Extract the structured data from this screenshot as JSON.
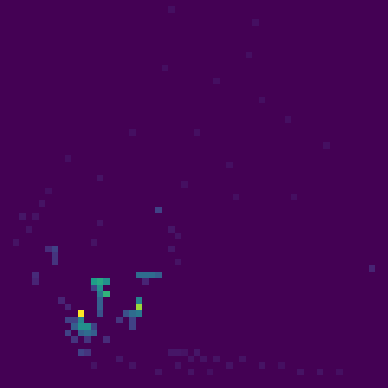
{
  "chart_data": {
    "type": "heatmap",
    "xlim": [
      0,
      60
    ],
    "ylim": [
      0,
      60
    ],
    "tick_labels": false,
    "grid": false,
    "color_range": [
      0,
      1
    ],
    "cells": [
      [
        12,
        48,
        1.0
      ],
      [
        21,
        47,
        0.85
      ],
      [
        21,
        46,
        0.45
      ],
      [
        21,
        48,
        0.4
      ],
      [
        20,
        48,
        0.35
      ],
      [
        19,
        48,
        0.25
      ],
      [
        20,
        50,
        0.2
      ],
      [
        18,
        49,
        0.15
      ],
      [
        20,
        49,
        0.2
      ],
      [
        14,
        43,
        0.55
      ],
      [
        15,
        43,
        0.6
      ],
      [
        16,
        43,
        0.5
      ],
      [
        15,
        44,
        0.5
      ],
      [
        16,
        45,
        0.65
      ],
      [
        15,
        45,
        0.4
      ],
      [
        15,
        46,
        0.3
      ],
      [
        15,
        47,
        0.3
      ],
      [
        15,
        48,
        0.25
      ],
      [
        14,
        44,
        0.2
      ],
      [
        21,
        42,
        0.35
      ],
      [
        22,
        42,
        0.35
      ],
      [
        23,
        42,
        0.35
      ],
      [
        24,
        42,
        0.3
      ],
      [
        22,
        43,
        0.1
      ],
      [
        12,
        49,
        0.45
      ],
      [
        12,
        50,
        0.5
      ],
      [
        13,
        50,
        0.5
      ],
      [
        11,
        50,
        0.3
      ],
      [
        13,
        51,
        0.35
      ],
      [
        14,
        51,
        0.3
      ],
      [
        12,
        51,
        0.3
      ],
      [
        10,
        49,
        0.2
      ],
      [
        10,
        51,
        0.2
      ],
      [
        11,
        52,
        0.15
      ],
      [
        12,
        54,
        0.2
      ],
      [
        13,
        54,
        0.15
      ],
      [
        11,
        49,
        0.2
      ],
      [
        14,
        50,
        0.2
      ],
      [
        16,
        52,
        0.12
      ],
      [
        13,
        52,
        0.15
      ],
      [
        8,
        38,
        0.2
      ],
      [
        8,
        39,
        0.15
      ],
      [
        8,
        40,
        0.15
      ],
      [
        7,
        38,
        0.12
      ],
      [
        5,
        42,
        0.12
      ],
      [
        5,
        43,
        0.1
      ],
      [
        9,
        46,
        0.1
      ],
      [
        10,
        47,
        0.1
      ],
      [
        24,
        32,
        0.2
      ],
      [
        26,
        35,
        0.06
      ],
      [
        27,
        36,
        0.05
      ],
      [
        26,
        38,
        0.06
      ],
      [
        27,
        40,
        0.05
      ],
      [
        15,
        34,
        0.05
      ],
      [
        14,
        37,
        0.05
      ],
      [
        3,
        33,
        0.06
      ],
      [
        4,
        35,
        0.05
      ],
      [
        2,
        37,
        0.05
      ],
      [
        6,
        31,
        0.05
      ],
      [
        5,
        33,
        0.05
      ],
      [
        7,
        29,
        0.04
      ],
      [
        57,
        41,
        0.1
      ],
      [
        26,
        54,
        0.06
      ],
      [
        27,
        54,
        0.06
      ],
      [
        28,
        54,
        0.05
      ],
      [
        29,
        55,
        0.05
      ],
      [
        30,
        54,
        0.06
      ],
      [
        31,
        55,
        0.05
      ],
      [
        33,
        55,
        0.05
      ],
      [
        35,
        56,
        0.05
      ],
      [
        37,
        55,
        0.05
      ],
      [
        40,
        56,
        0.05
      ],
      [
        43,
        56,
        0.04
      ],
      [
        46,
        57,
        0.05
      ],
      [
        49,
        57,
        0.05
      ],
      [
        52,
        57,
        0.04
      ],
      [
        27,
        56,
        0.05
      ],
      [
        29,
        57,
        0.05
      ],
      [
        32,
        57,
        0.04
      ],
      [
        18,
        55,
        0.06
      ],
      [
        20,
        56,
        0.05
      ],
      [
        14,
        56,
        0.05
      ],
      [
        24,
        57,
        0.05
      ],
      [
        30,
        20,
        0.04
      ],
      [
        35,
        25,
        0.04
      ],
      [
        40,
        15,
        0.04
      ],
      [
        45,
        30,
        0.04
      ],
      [
        25,
        10,
        0.04
      ],
      [
        20,
        20,
        0.04
      ],
      [
        38,
        8,
        0.04
      ],
      [
        50,
        22,
        0.04
      ],
      [
        33,
        12,
        0.04
      ],
      [
        28,
        28,
        0.04
      ],
      [
        26,
        1,
        0.04
      ],
      [
        39,
        3,
        0.04
      ],
      [
        15,
        27,
        0.05
      ],
      [
        10,
        24,
        0.04
      ],
      [
        44,
        18,
        0.04
      ],
      [
        36,
        30,
        0.04
      ]
    ]
  }
}
